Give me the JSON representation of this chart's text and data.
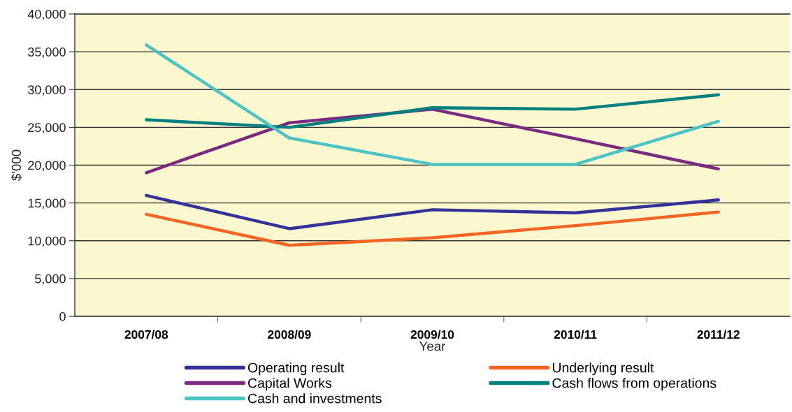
{
  "chart_data": {
    "type": "line",
    "categories": [
      "2007/08",
      "2008/09",
      "2009/10",
      "2010/11",
      "2011/12"
    ],
    "xlabel": "Year",
    "ylabel": "$'000",
    "ylim": [
      0,
      40000
    ],
    "yticks": [
      {
        "value": 0,
        "label": "0"
      },
      {
        "value": 5000,
        "label": "5,000"
      },
      {
        "value": 10000,
        "label": "10,000"
      },
      {
        "value": 15000,
        "label": "15,000"
      },
      {
        "value": 20000,
        "label": "20,000"
      },
      {
        "value": 25000,
        "label": "25,000"
      },
      {
        "value": 30000,
        "label": "30,000"
      },
      {
        "value": 35000,
        "label": "35,000"
      },
      {
        "value": 40000,
        "label": "40,000"
      }
    ],
    "grid": "y",
    "legend": "bottom",
    "marker": "none",
    "line_style": "solid",
    "series": [
      {
        "name": "Operating result",
        "color": "#333399",
        "values": [
          16000,
          11600,
          14100,
          13700,
          15400
        ]
      },
      {
        "name": "Underlying result",
        "color": "#f26522",
        "values": [
          13500,
          9400,
          10400,
          12000,
          13800
        ]
      },
      {
        "name": "Capital Works",
        "color": "#7b2a7f",
        "values": [
          19000,
          25600,
          27400,
          23500,
          19500
        ]
      },
      {
        "name": "Cash flows from operations",
        "color": "#007f7f",
        "values": [
          26000,
          25000,
          27600,
          27400,
          29300
        ]
      },
      {
        "name": "Cash and investments",
        "color": "#4ec3c6",
        "values": [
          35900,
          23600,
          20100,
          20100,
          25800
        ]
      }
    ]
  }
}
